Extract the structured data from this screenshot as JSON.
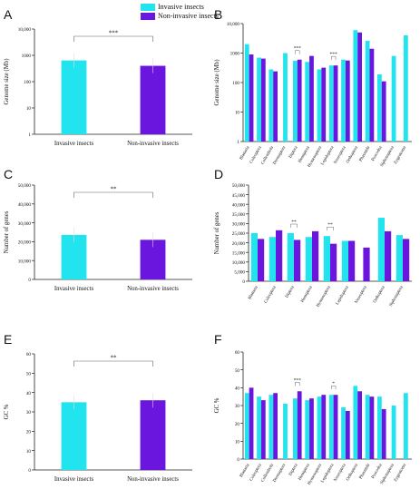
{
  "colors": {
    "invasive": "#22e4ee",
    "noninvasive": "#6a16de",
    "frame": "#222222"
  },
  "legend": {
    "invasive_label": "Invasive insects",
    "noninvasive_label": "Non-invasive insects"
  },
  "panels": {
    "A": "A",
    "B": "B",
    "C": "C",
    "D": "D",
    "E": "E",
    "F": "F"
  },
  "chart_data": [
    {
      "id": "A",
      "type": "bar",
      "ylabel": "Genome size (Mb)",
      "yscale": "log",
      "ylim": [
        1,
        10000
      ],
      "yticks": [
        1,
        10,
        100,
        1000,
        10000
      ],
      "ytick_labels": [
        "1",
        "10",
        "100",
        "1000",
        "10,000"
      ],
      "categories": [
        "Invasive insects",
        "Non-invasive insects"
      ],
      "values": [
        640,
        400
      ],
      "significance": "***"
    },
    {
      "id": "B",
      "type": "bar",
      "ylabel": "Genome size (Mb)",
      "yscale": "log",
      "ylim": [
        1,
        10000
      ],
      "yticks": [
        1,
        10,
        100,
        1000,
        10000
      ],
      "ytick_labels": [
        "1",
        "10",
        "100",
        "1000",
        "10,000"
      ],
      "categories": [
        "Blattaria",
        "Coleoptera",
        "Collembola",
        "Dermaptera",
        "Diptera",
        "Hemiptera",
        "Hymenoptera",
        "Lepidoptera",
        "Neuroptera",
        "Orthoptera",
        "Phasmida",
        "Psocodea",
        "Siphonaptera",
        "Zygentoma"
      ],
      "series": [
        {
          "name": "Invasive insects",
          "values": [
            2000,
            700,
            280,
            1000,
            550,
            500,
            280,
            380,
            600,
            6000,
            2600,
            190,
            800,
            4000
          ]
        },
        {
          "name": "Non-invasive insects",
          "values": [
            900,
            650,
            240,
            null,
            600,
            800,
            320,
            380,
            560,
            5000,
            1400,
            110,
            null,
            null
          ]
        }
      ],
      "significance": [
        {
          "category": "Diptera",
          "label": "***"
        },
        {
          "category": "Lepidoptera",
          "label": "***"
        }
      ]
    },
    {
      "id": "C",
      "type": "bar",
      "ylabel": "Number of genes",
      "ylim": [
        0,
        50000
      ],
      "yticks": [
        0,
        10000,
        20000,
        30000,
        40000,
        50000
      ],
      "ytick_labels": [
        "0",
        "10,000",
        "20,000",
        "30,000",
        "40,000",
        "50,000"
      ],
      "categories": [
        "Invasive insects",
        "Non-invasive insects"
      ],
      "values": [
        23600,
        21000
      ],
      "significance": "**"
    },
    {
      "id": "D",
      "type": "bar",
      "ylabel": "Number of genes",
      "ylim": [
        0,
        50000
      ],
      "yticks": [
        0,
        5000,
        10000,
        15000,
        20000,
        25000,
        30000,
        35000,
        40000,
        45000,
        50000
      ],
      "ytick_labels": [
        "0",
        "5,000",
        "10,000",
        "15,000",
        "20,000",
        "25,000",
        "30,000",
        "35,000",
        "40,000",
        "45,000",
        "50,000"
      ],
      "categories": [
        "Blattaria",
        "Coleoptera",
        "Diptera",
        "Hemiptera",
        "Hymenoptera",
        "Lepidoptera",
        "Neuroptera",
        "Orthoptera",
        "Siphonaptera"
      ],
      "series": [
        {
          "name": "Invasive insects",
          "values": [
            25000,
            23000,
            25000,
            23000,
            23500,
            21000,
            null,
            33000,
            24000
          ]
        },
        {
          "name": "Non-invasive insects",
          "values": [
            22000,
            26500,
            21500,
            26000,
            19500,
            21000,
            17500,
            26000,
            22000
          ]
        }
      ],
      "significance": [
        {
          "category": "Diptera",
          "label": "**"
        },
        {
          "category": "Hymenoptera",
          "label": "**"
        }
      ]
    },
    {
      "id": "E",
      "type": "bar",
      "ylabel": "GC %",
      "ylim": [
        0,
        60
      ],
      "yticks": [
        0,
        10,
        20,
        30,
        40,
        50,
        60
      ],
      "ytick_labels": [
        "0",
        "10",
        "20",
        "30",
        "40",
        "50",
        "60"
      ],
      "categories": [
        "Invasive insects",
        "Non-invasive insects"
      ],
      "values": [
        35,
        36
      ],
      "significance": "**"
    },
    {
      "id": "F",
      "type": "bar",
      "ylabel": "GC %",
      "ylim": [
        0,
        60
      ],
      "yticks": [
        0,
        10,
        20,
        30,
        40,
        50,
        60
      ],
      "ytick_labels": [
        "0",
        "10",
        "20",
        "30",
        "40",
        "50",
        "60"
      ],
      "categories": [
        "Blattaria",
        "Coleoptera",
        "Collembola",
        "Dermaptera",
        "Diptera",
        "Hemiptera",
        "Hymenoptera",
        "Lepidoptera",
        "Neuroptera",
        "Orthoptera",
        "Phasmida",
        "Psocodea",
        "Siphonaptera",
        "Zygentoma"
      ],
      "series": [
        {
          "name": "Invasive insects",
          "values": [
            37,
            35,
            36,
            31,
            34,
            33,
            35,
            36,
            29,
            41,
            36,
            35,
            30,
            37
          ]
        },
        {
          "name": "Non-invasive insects",
          "values": [
            40,
            33,
            37,
            null,
            38,
            34,
            36,
            36,
            27,
            38,
            35,
            28,
            null,
            null
          ]
        }
      ],
      "significance": [
        {
          "category": "Diptera",
          "label": "***"
        },
        {
          "category": "Lepidoptera",
          "label": "*"
        }
      ]
    }
  ]
}
